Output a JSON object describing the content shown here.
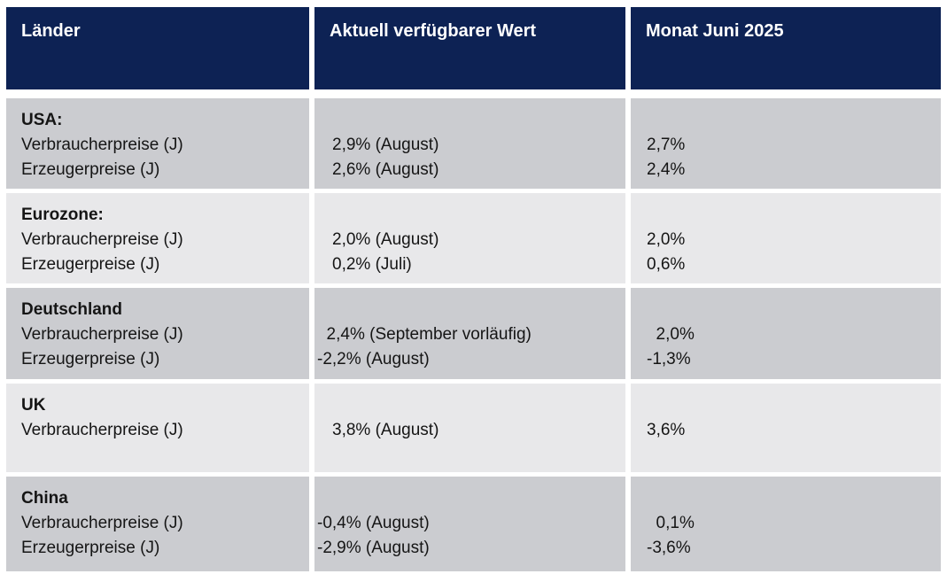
{
  "table": {
    "header": {
      "col1": "Länder",
      "col2": "Aktuell verfügbarer Wert",
      "col3": "Monat Juni 2025"
    },
    "colors": {
      "header_bg": "#0d2254",
      "header_text": "#ffffff",
      "row_dark_bg": "#cbccd0",
      "row_light_bg": "#e8e8ea",
      "body_text": "#151515"
    },
    "rows": [
      {
        "country": "USA:",
        "labels": [
          "Verbraucherpreise (J)",
          "Erzeugerpreise (J)"
        ],
        "current": [
          "2,9% (August)",
          "2,6% (August)"
        ],
        "june": [
          "2,7%",
          "2,4%"
        ]
      },
      {
        "country": "Eurozone:",
        "labels": [
          "Verbraucherpreise (J)",
          "Erzeugerpreise (J)"
        ],
        "current": [
          "2,0% (August)",
          "0,2% (Juli)"
        ],
        "june": [
          "2,0%",
          "0,6%"
        ]
      },
      {
        "country": "Deutschland",
        "labels": [
          "Verbraucherpreise (J)",
          "Erzeugerpreise (J)"
        ],
        "current": [
          "  2,4% (September vorläufig)",
          "-2,2% (August)"
        ],
        "june": [
          "  2,0%",
          "-1,3%"
        ]
      },
      {
        "country": "UK",
        "labels": [
          "Verbraucherpreise (J)"
        ],
        "current": [
          "3,8% (August)"
        ],
        "june": [
          "3,6%"
        ]
      },
      {
        "country": "China",
        "labels": [
          "Verbraucherpreise (J)",
          "Erzeugerpreise (J)"
        ],
        "current": [
          "-0,4% (August)",
          "-2,9% (August)"
        ],
        "june": [
          "  0,1%",
          "-3,6%"
        ]
      }
    ]
  }
}
